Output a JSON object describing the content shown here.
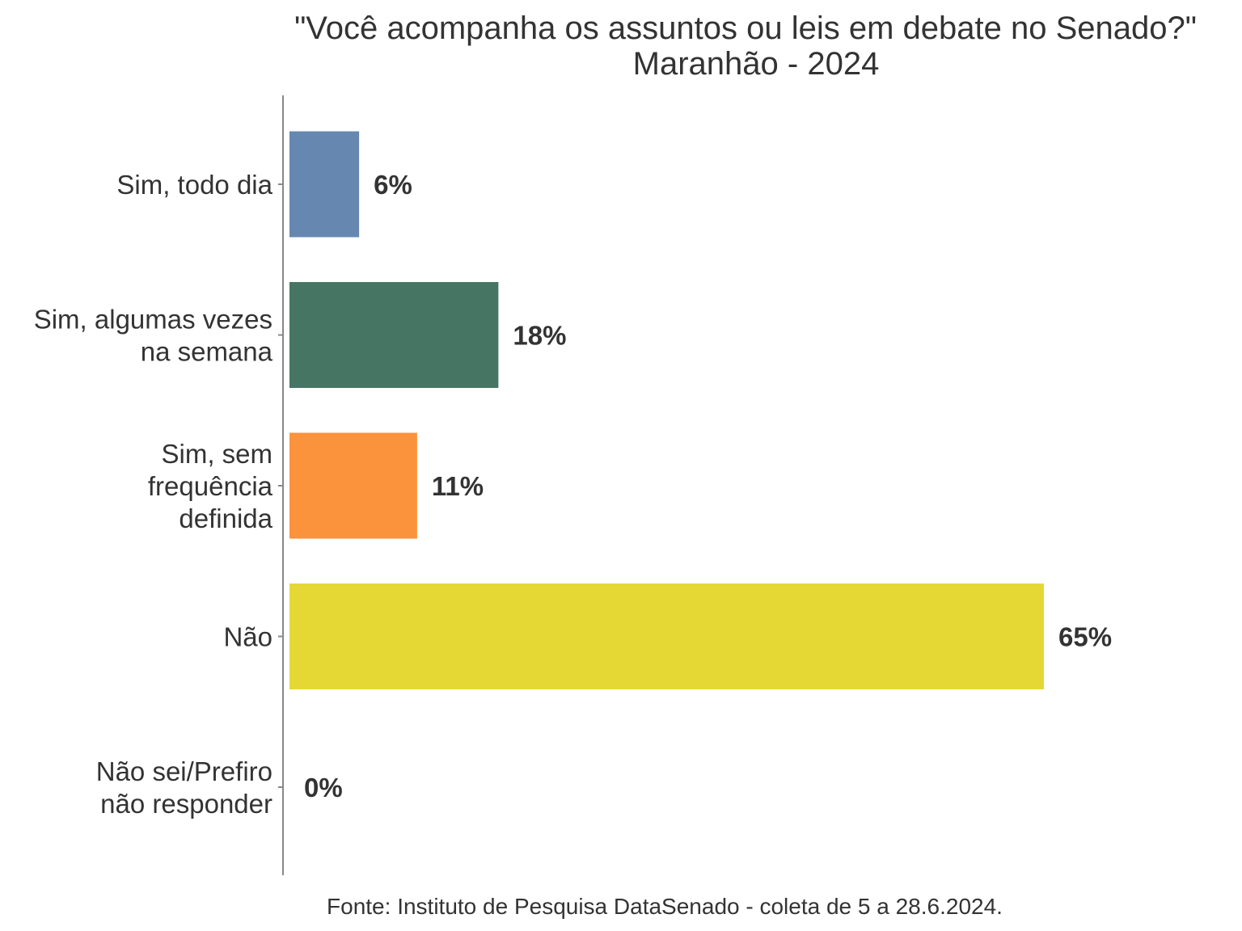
{
  "chart_data": {
    "type": "bar",
    "orientation": "horizontal",
    "title": "\"Você acompanha os assuntos ou leis em debate no Senado?\"",
    "subtitle": "Maranhão - 2024",
    "categories": [
      "Sim, todo dia",
      "Sim, algumas vezes na semana",
      "Sim, sem frequência definida",
      "Não",
      "Não sei/Prefiro não responder"
    ],
    "category_lines": [
      [
        "Sim, todo dia"
      ],
      [
        "Sim, algumas vezes",
        "na semana"
      ],
      [
        "Sim, sem",
        "frequência",
        "definida"
      ],
      [
        "Não"
      ],
      [
        "Não sei/Prefiro",
        "não responder"
      ]
    ],
    "values": [
      6,
      18,
      11,
      65,
      0
    ],
    "value_labels": [
      "6%",
      "18%",
      "11%",
      "65%",
      "0%"
    ],
    "colors": [
      "#6688b0",
      "#467564",
      "#fb923c",
      "#e5d835",
      "#e5d835"
    ],
    "xlim": [
      0,
      65
    ],
    "grid": false,
    "legend": "none",
    "caption": "Fonte: Instituto de Pesquisa DataSenado - coleta de 5 a 28.6.2024."
  }
}
